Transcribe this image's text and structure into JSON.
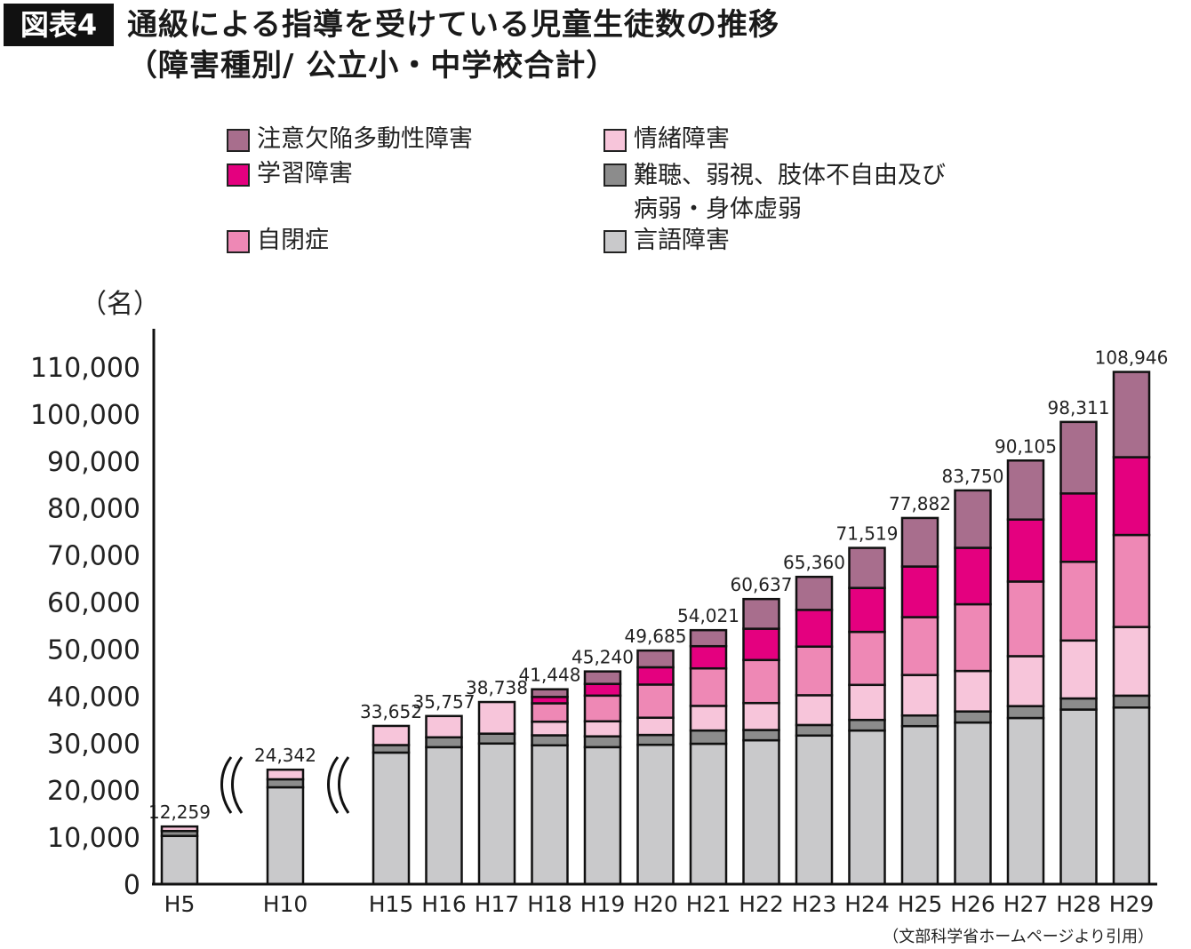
{
  "figure_label": "図表4",
  "title_line1": "通級による指導を受けている児童生徒数の推移",
  "title_line2": "（障害種別/ 公立小・中学校合計）",
  "source": "（文部科学省ホームページより引用）",
  "chart_data": {
    "type": "bar",
    "stacked": true,
    "title": "通級による指導を受けている児童生徒数の推移（障害種別/ 公立小・中学校合計）",
    "ylabel": "（名）",
    "ylim": [
      0,
      110000
    ],
    "yticks": [
      "0",
      "10,000",
      "20,000",
      "30,000",
      "40,000",
      "50,000",
      "60,000",
      "70,000",
      "80,000",
      "90,000",
      "100,000",
      "110,000"
    ],
    "grid": false,
    "legend_position": "top",
    "axis_break_after": [
      "H5",
      "H10"
    ],
    "categories": [
      "H5",
      "H10",
      "H15",
      "H16",
      "H17",
      "H18",
      "H19",
      "H20",
      "H21",
      "H22",
      "H23",
      "H24",
      "H25",
      "H26",
      "H27",
      "H28",
      "H29"
    ],
    "totals": [
      "12,259",
      "24,342",
      "33,652",
      "35,757",
      "38,738",
      "41,448",
      "45,240",
      "49,685",
      "54,021",
      "60,637",
      "65,360",
      "71,519",
      "77,882",
      "83,750",
      "90,105",
      "98,311",
      "108,946"
    ],
    "series": [
      {
        "name": "言語障害",
        "color": "#c9c9cb",
        "values": [
          10250,
          20600,
          27981,
          29130,
          29907,
          29527,
          29134,
          29635,
          29860,
          30600,
          31607,
          32674,
          33606,
          34375,
          35337,
          37134,
          37561
        ]
      },
      {
        "name": "難聴、弱視、肢体不自由及び病弱・身体虚弱",
        "color": "#8c8c8c",
        "values": [
          1050,
          1700,
          1600,
          2100,
          2100,
          2129,
          2300,
          2100,
          2817,
          2185,
          2240,
          2254,
          2262,
          2354,
          2530,
          2362,
          2529
        ]
      },
      {
        "name": "情緒障害",
        "color": "#f7c5da",
        "values": [
          959,
          2042,
          4071,
          4527,
          6731,
          2898,
          3200,
          3664,
          5237,
          5737,
          6332,
          7450,
          8613,
          8613,
          10620,
          12325,
          14609
        ]
      },
      {
        "name": "自閉症",
        "color": "#ee88b5",
        "values": [
          0,
          0,
          0,
          0,
          0,
          3912,
          5469,
          7047,
          7975,
          9148,
          10342,
          11274,
          12308,
          14189,
          15876,
          16737,
          19567
        ]
      },
      {
        "name": "学習障害",
        "color": "#e4007f",
        "values": [
          0,
          0,
          0,
          0,
          0,
          1351,
          2485,
          3682,
          4726,
          6655,
          7813,
          9350,
          10769,
          12006,
          13188,
          14543,
          16545
        ]
      },
      {
        "name": "注意欠陥多動性障害",
        "color": "#a86e8d",
        "values": [
          0,
          0,
          0,
          0,
          0,
          1631,
          2652,
          3557,
          3406,
          6312,
          7026,
          8517,
          10324,
          12213,
          12554,
          15210,
          18135
        ]
      }
    ]
  },
  "legend": [
    {
      "label": "注意欠陥多動性障害",
      "color": "#a86e8d"
    },
    {
      "label": "学習障害",
      "color": "#e4007f"
    },
    {
      "label": "自閉症",
      "color": "#ee88b5"
    },
    {
      "label": "情緒障害",
      "color": "#f7c5da"
    },
    {
      "label": "難聴、弱視、肢体不自由及び\n病弱・身体虚弱",
      "color": "#8c8c8c"
    },
    {
      "label": "言語障害",
      "color": "#c9c9cb"
    }
  ]
}
